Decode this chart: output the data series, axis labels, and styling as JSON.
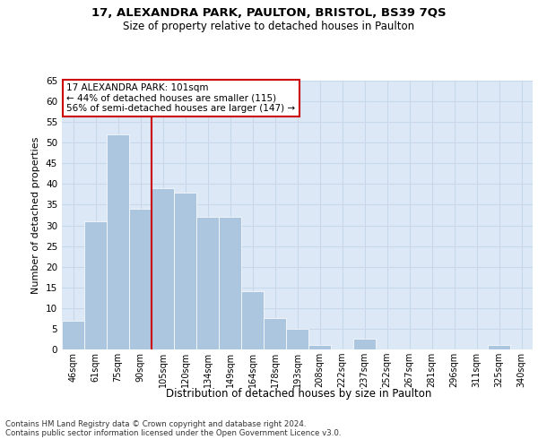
{
  "title1": "17, ALEXANDRA PARK, PAULTON, BRISTOL, BS39 7QS",
  "title2": "Size of property relative to detached houses in Paulton",
  "xlabel": "Distribution of detached houses by size in Paulton",
  "ylabel": "Number of detached properties",
  "categories": [
    "46sqm",
    "61sqm",
    "75sqm",
    "90sqm",
    "105sqm",
    "120sqm",
    "134sqm",
    "149sqm",
    "164sqm",
    "178sqm",
    "193sqm",
    "208sqm",
    "222sqm",
    "237sqm",
    "252sqm",
    "267sqm",
    "281sqm",
    "296sqm",
    "311sqm",
    "325sqm",
    "340sqm"
  ],
  "values": [
    7,
    31,
    52,
    34,
    39,
    38,
    32,
    32,
    14,
    7.5,
    5,
    1,
    0,
    2.5,
    0,
    0,
    0,
    0,
    0,
    1,
    0
  ],
  "bar_color": "#adc6e0",
  "bar_edge_color": "#ffffff",
  "grid_color": "#c8d8ea",
  "bg_color": "#dce8f5",
  "fig_bg_color": "#ffffff",
  "vline_color": "#cc0000",
  "annotation_text": "17 ALEXANDRA PARK: 101sqm\n← 44% of detached houses are smaller (115)\n56% of semi-detached houses are larger (147) →",
  "annotation_box_color": "#ffffff",
  "annotation_box_edge": "#cc0000",
  "ylim": [
    0,
    65
  ],
  "yticks": [
    0,
    5,
    10,
    15,
    20,
    25,
    30,
    35,
    40,
    45,
    50,
    55,
    60,
    65
  ],
  "footer1": "Contains HM Land Registry data © Crown copyright and database right 2024.",
  "footer2": "Contains public sector information licensed under the Open Government Licence v3.0."
}
